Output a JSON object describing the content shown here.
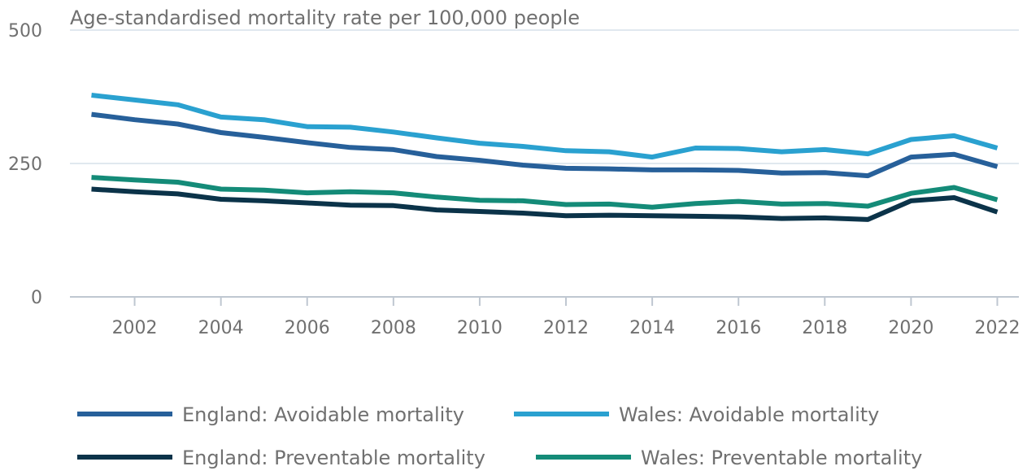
{
  "chart_data": {
    "type": "line",
    "title": "",
    "ylabel": "Age-standardised mortality rate per 100,000 people",
    "xlabel": "",
    "ylim": [
      0,
      500
    ],
    "yticks": [
      0,
      250,
      500
    ],
    "xlim": [
      2000.5,
      2022.5
    ],
    "xticks": [
      2002,
      2004,
      2006,
      2008,
      2010,
      2012,
      2014,
      2016,
      2018,
      2020,
      2022
    ],
    "grid": "horizontal",
    "legend_position": "bottom",
    "x": [
      2001,
      2002,
      2003,
      2004,
      2005,
      2006,
      2007,
      2008,
      2009,
      2010,
      2011,
      2012,
      2013,
      2014,
      2015,
      2016,
      2017,
      2018,
      2019,
      2020,
      2021,
      2022
    ],
    "series": [
      {
        "name": "England: Avoidable mortality",
        "color": "#27609a",
        "values": [
          342,
          332,
          324,
          308,
          299,
          289,
          280,
          276,
          263,
          256,
          247,
          241,
          240,
          238,
          238,
          237,
          232,
          233,
          227,
          262,
          267,
          244
        ]
      },
      {
        "name": "Wales: Avoidable mortality",
        "color": "#2aa1d0",
        "values": [
          378,
          369,
          360,
          337,
          332,
          319,
          318,
          309,
          298,
          288,
          282,
          274,
          272,
          262,
          279,
          278,
          272,
          276,
          268,
          295,
          302,
          279
        ]
      },
      {
        "name": "England: Preventable mortality",
        "color": "#0b3349",
        "values": [
          202,
          197,
          193,
          183,
          180,
          176,
          172,
          171,
          163,
          160,
          157,
          152,
          153,
          152,
          151,
          150,
          147,
          148,
          145,
          180,
          186,
          159
        ]
      },
      {
        "name": "Wales: Preventable mortality",
        "color": "#148b78",
        "values": [
          224,
          219,
          215,
          202,
          200,
          195,
          197,
          195,
          187,
          181,
          180,
          173,
          174,
          168,
          175,
          179,
          174,
          175,
          170,
          194,
          205,
          182
        ]
      }
    ]
  },
  "style": {
    "axis_color": "#bfc7d1",
    "grid_color": "#d6e0ea",
    "text_color": "#707070"
  }
}
